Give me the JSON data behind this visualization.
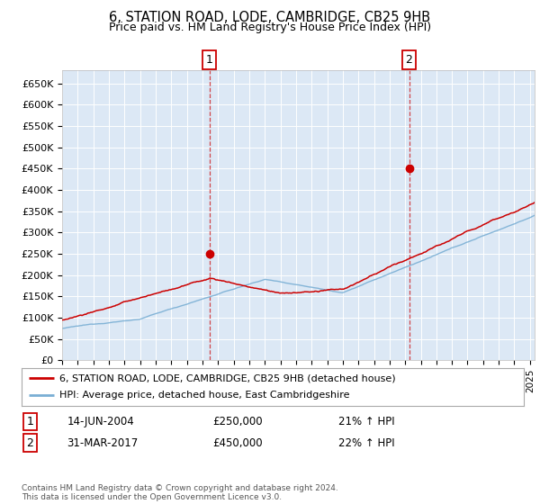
{
  "title": "6, STATION ROAD, LODE, CAMBRIDGE, CB25 9HB",
  "subtitle": "Price paid vs. HM Land Registry's House Price Index (HPI)",
  "ylim": [
    0,
    680000
  ],
  "yticks": [
    0,
    50000,
    100000,
    150000,
    200000,
    250000,
    300000,
    350000,
    400000,
    450000,
    500000,
    550000,
    600000,
    650000
  ],
  "ytick_labels": [
    "£0",
    "£50K",
    "£100K",
    "£150K",
    "£200K",
    "£250K",
    "£300K",
    "£350K",
    "£400K",
    "£450K",
    "£500K",
    "£550K",
    "£600K",
    "£650K"
  ],
  "xlim_start": 1995.0,
  "xlim_end": 2025.3,
  "plot_bg": "#dce8f5",
  "red_color": "#cc0000",
  "blue_color": "#7aafd4",
  "marker1_x": 2004.45,
  "marker1_y": 250000,
  "marker2_x": 2017.25,
  "marker2_y": 450000,
  "legend_line1": "6, STATION ROAD, LODE, CAMBRIDGE, CB25 9HB (detached house)",
  "legend_line2": "HPI: Average price, detached house, East Cambridgeshire",
  "annot1_date": "14-JUN-2004",
  "annot1_price": "£250,000",
  "annot1_hpi": "21% ↑ HPI",
  "annot2_date": "31-MAR-2017",
  "annot2_price": "£450,000",
  "annot2_hpi": "22% ↑ HPI",
  "footer": "Contains HM Land Registry data © Crown copyright and database right 2024.\nThis data is licensed under the Open Government Licence v3.0."
}
